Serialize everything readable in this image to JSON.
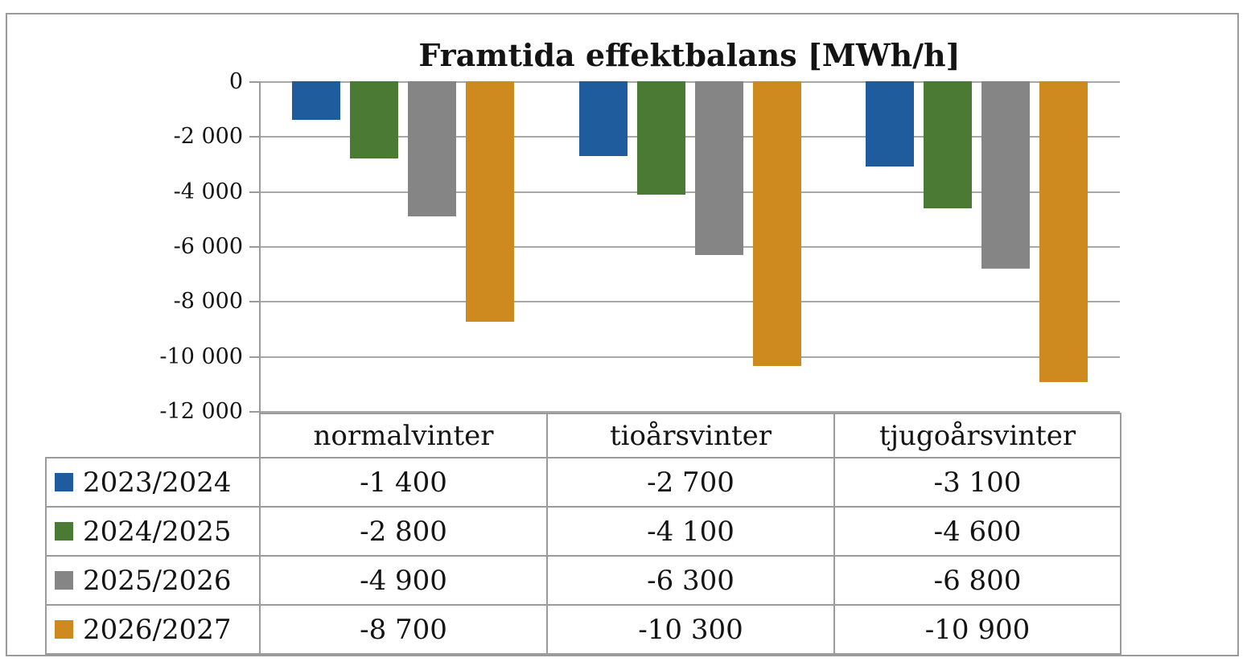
{
  "title": "Framtida effektbalans [MWh/h]",
  "chart_data": {
    "type": "bar",
    "title": "Framtida effektbalans [MWh/h]",
    "categories": [
      "normalvinter",
      "tioårsvinter",
      "tjugoårsvinter"
    ],
    "series": [
      {
        "name": "2023/2024",
        "color": "#1F5C9E",
        "values": [
          -1400,
          -2700,
          -3100
        ],
        "display_values": [
          "-1 400",
          "-2 700",
          "-3 100"
        ]
      },
      {
        "name": "2024/2025",
        "color": "#4A7A33",
        "values": [
          -2800,
          -4100,
          -4600
        ],
        "display_values": [
          "-2 800",
          "-4 100",
          "-4 600"
        ]
      },
      {
        "name": "2025/2026",
        "color": "#858585",
        "values": [
          -4900,
          -6300,
          -6800
        ],
        "display_values": [
          "-4 900",
          "-6 300",
          "-6 800"
        ]
      },
      {
        "name": "2026/2027",
        "color": "#CE8A1E",
        "values": [
          -8700,
          -10300,
          -10900
        ],
        "display_values": [
          "-8 700",
          "-10 300",
          "-10 900"
        ]
      }
    ],
    "xlabel": "",
    "ylabel": "",
    "ylim": [
      -12000,
      0
    ],
    "y_ticks": [
      0,
      -2000,
      -4000,
      -6000,
      -8000,
      -10000,
      -12000
    ],
    "y_tick_labels": [
      "0",
      "-2 000",
      "-4 000",
      "-6 000",
      "-8 000",
      "-10 000",
      "-12 000"
    ],
    "grid": true,
    "legend_position": "data-table-left",
    "data_table": true
  },
  "colors": {
    "background": "#FFFFFF",
    "frame_border": "#9B9B9B",
    "gridline": "#A8A8A8",
    "text": "#141414"
  }
}
